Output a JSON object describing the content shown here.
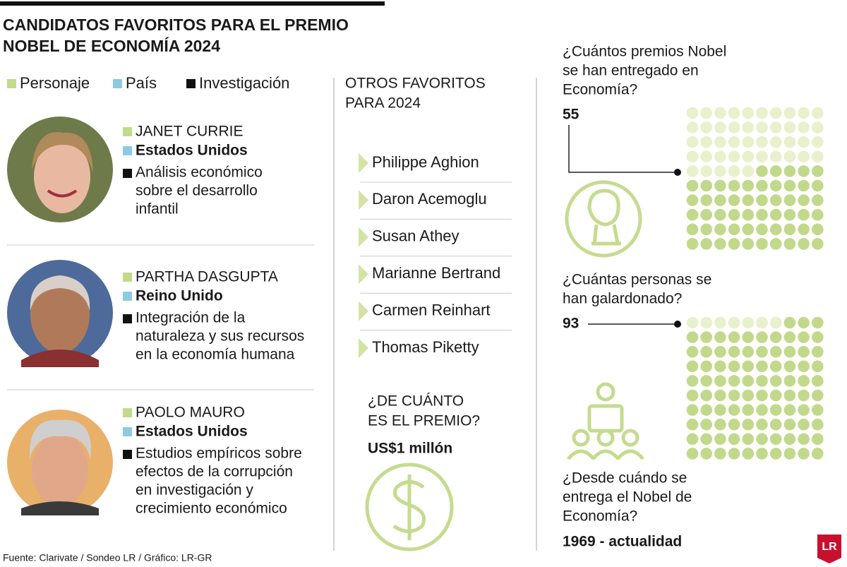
{
  "header": {
    "title": [
      "CANDIDATOS FAVORITOS PARA EL PREMIO",
      "NOBEL DE ECONOMÍA 2024"
    ]
  },
  "legend": [
    {
      "label": "Personaje",
      "color": "#c3d98c"
    },
    {
      "label": "País",
      "color": "#8ccbe0"
    },
    {
      "label": "Investigación",
      "color": "#111111"
    }
  ],
  "candidates": [
    {
      "name": "JANET CURRIE",
      "country": "Estados Unidos",
      "research": [
        "Análisis económico",
        "sobre el desarrollo",
        "infantil"
      ]
    },
    {
      "name": "PARTHA DASGUPTA",
      "country": "Reino Unido",
      "research": [
        "Integración de la",
        "naturaleza y sus recursos",
        "en la economía humana"
      ]
    },
    {
      "name": "PAOLO MAURO",
      "country": "Estados Unidos",
      "research": [
        "Estudios empíricos sobre",
        "efectos de la corrupción",
        "en investigación y",
        "crecimiento económico"
      ]
    }
  ],
  "others": {
    "title": [
      "OTROS FAVORITOS",
      "PARA 2024"
    ],
    "names": [
      "Philippe Aghion",
      "Daron Acemoglu",
      "Susan Athey",
      "Marianne Bertrand",
      "Carmen Reinhart",
      "Thomas Piketty"
    ]
  },
  "prize": {
    "question": [
      "¿DE CUÁNTO",
      "ES EL PREMIO?"
    ],
    "amount": "US$1 millón"
  },
  "stats": [
    {
      "question": [
        "¿Cuántos premios Nobel",
        "se han entregado en",
        "Economía?"
      ],
      "value": 55
    },
    {
      "question": [
        "¿Cuántas personas se",
        "han galardonado?"
      ],
      "value": 93
    }
  ],
  "since": {
    "question": [
      "¿Desde cuándo se",
      "entrega el Nobel de",
      "Economía?"
    ],
    "answer": "1969 - actualidad"
  },
  "logo": "LR",
  "source": "Fuente: Clarivate / Sondeo LR / Gráfico: LR-GR"
}
